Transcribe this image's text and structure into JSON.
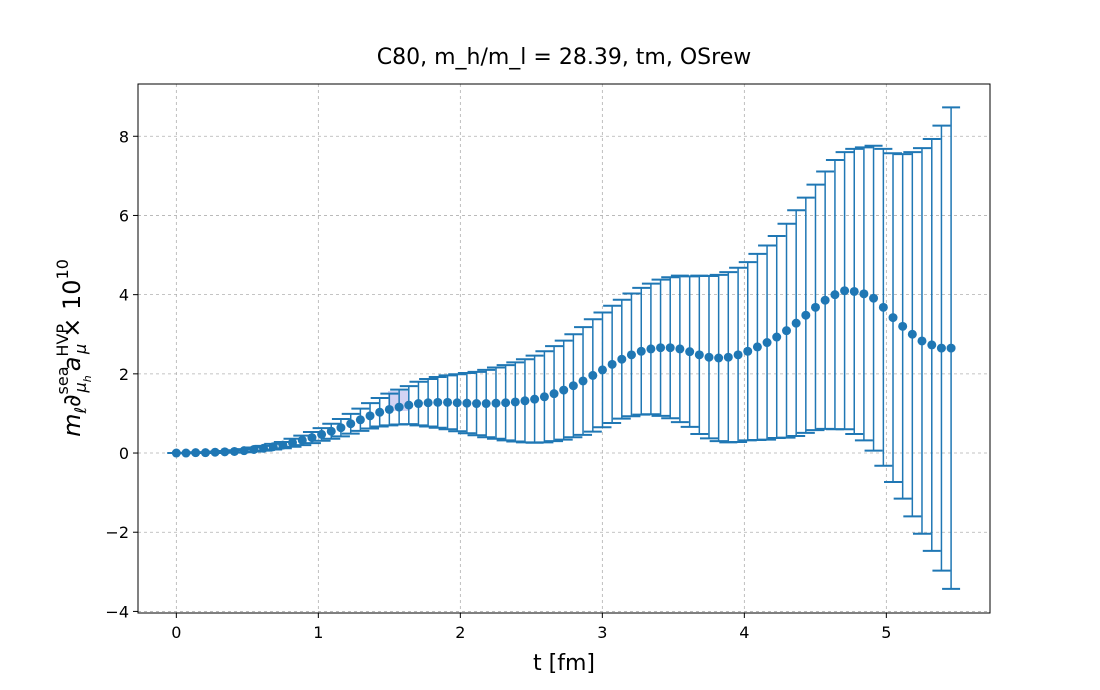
{
  "chart_data": {
    "type": "errorbar",
    "title": "C80, m_h/m_l = 28.39, tm, OSrew",
    "xlabel": "t [fm]",
    "ylabel": [
      "m",
      "ℓ",
      "∂",
      "sea",
      "μ",
      "h",
      "a",
      "HVP",
      "μ",
      "× 10",
      "10"
    ],
    "color": "#1f77b4",
    "grid": true,
    "xlim": [
      -0.27,
      5.73
    ],
    "ylim": [
      -4.04,
      9.32
    ],
    "xticks": [
      0,
      1,
      2,
      3,
      4,
      5
    ],
    "yticks": [
      {
        "value": -4,
        "label": "−4"
      },
      {
        "value": -2,
        "label": "−2"
      },
      0,
      2,
      4,
      6,
      8
    ],
    "x": [
      0,
      0.068,
      0.136,
      0.205,
      0.273,
      0.341,
      0.409,
      0.477,
      0.546,
      0.614,
      0.682,
      0.75,
      0.818,
      0.887,
      0.955,
      1.023,
      1.091,
      1.159,
      1.228,
      1.296,
      1.364,
      1.432,
      1.5,
      1.569,
      1.637,
      1.705,
      1.773,
      1.841,
      1.91,
      1.978,
      2.046,
      2.114,
      2.182,
      2.251,
      2.319,
      2.387,
      2.455,
      2.523,
      2.592,
      2.66,
      2.728,
      2.796,
      2.864,
      2.933,
      3.001,
      3.069,
      3.137,
      3.205,
      3.274,
      3.342,
      3.41,
      3.478,
      3.546,
      3.615,
      3.683,
      3.751,
      3.819,
      3.887,
      3.956,
      4.024,
      4.092,
      4.16,
      4.228,
      4.297,
      4.365,
      4.433,
      4.501,
      4.569,
      4.638,
      4.706,
      4.774,
      4.842,
      4.91,
      4.979,
      5.047,
      5.115,
      5.183,
      5.251,
      5.32,
      5.388,
      5.456
    ],
    "values": [
      0,
      0,
      0.01,
      0.01,
      0.02,
      0.03,
      0.04,
      0.06,
      0.09,
      0.12,
      0.16,
      0.2,
      0.26,
      0.32,
      0.39,
      0.47,
      0.55,
      0.64,
      0.74,
      0.84,
      0.94,
      1.03,
      1.1,
      1.16,
      1.21,
      1.25,
      1.27,
      1.28,
      1.28,
      1.27,
      1.26,
      1.25,
      1.25,
      1.26,
      1.27,
      1.29,
      1.32,
      1.36,
      1.42,
      1.5,
      1.59,
      1.7,
      1.82,
      1.96,
      2.1,
      2.24,
      2.37,
      2.48,
      2.57,
      2.63,
      2.66,
      2.66,
      2.63,
      2.56,
      2.48,
      2.42,
      2.4,
      2.42,
      2.48,
      2.57,
      2.68,
      2.79,
      2.93,
      3.09,
      3.28,
      3.48,
      3.68,
      3.86,
      4.0,
      4.1,
      4.08,
      4.02,
      3.91,
      3.68,
      3.42,
      3.2,
      3.0,
      2.83,
      2.73,
      2.65,
      2.65
    ],
    "errors": [
      0,
      0.005,
      0.01,
      0.01,
      0.02,
      0.02,
      0.03,
      0.04,
      0.05,
      0.06,
      0.07,
      0.08,
      0.1,
      0.12,
      0.14,
      0.16,
      0.19,
      0.22,
      0.25,
      0.28,
      0.32,
      0.36,
      0.4,
      0.44,
      0.48,
      0.55,
      0.6,
      0.64,
      0.68,
      0.72,
      0.76,
      0.8,
      0.85,
      0.9,
      0.95,
      1.0,
      1.05,
      1.1,
      1.15,
      1.2,
      1.25,
      1.3,
      1.36,
      1.42,
      1.45,
      1.48,
      1.5,
      1.55,
      1.6,
      1.65,
      1.72,
      1.78,
      1.85,
      1.9,
      2.0,
      2.05,
      2.1,
      2.15,
      2.2,
      2.25,
      2.35,
      2.45,
      2.55,
      2.7,
      2.85,
      2.97,
      3.1,
      3.25,
      3.4,
      3.5,
      3.6,
      3.7,
      3.85,
      4.0,
      4.15,
      4.35,
      4.6,
      4.87,
      5.2,
      5.62,
      6.08
    ]
  }
}
